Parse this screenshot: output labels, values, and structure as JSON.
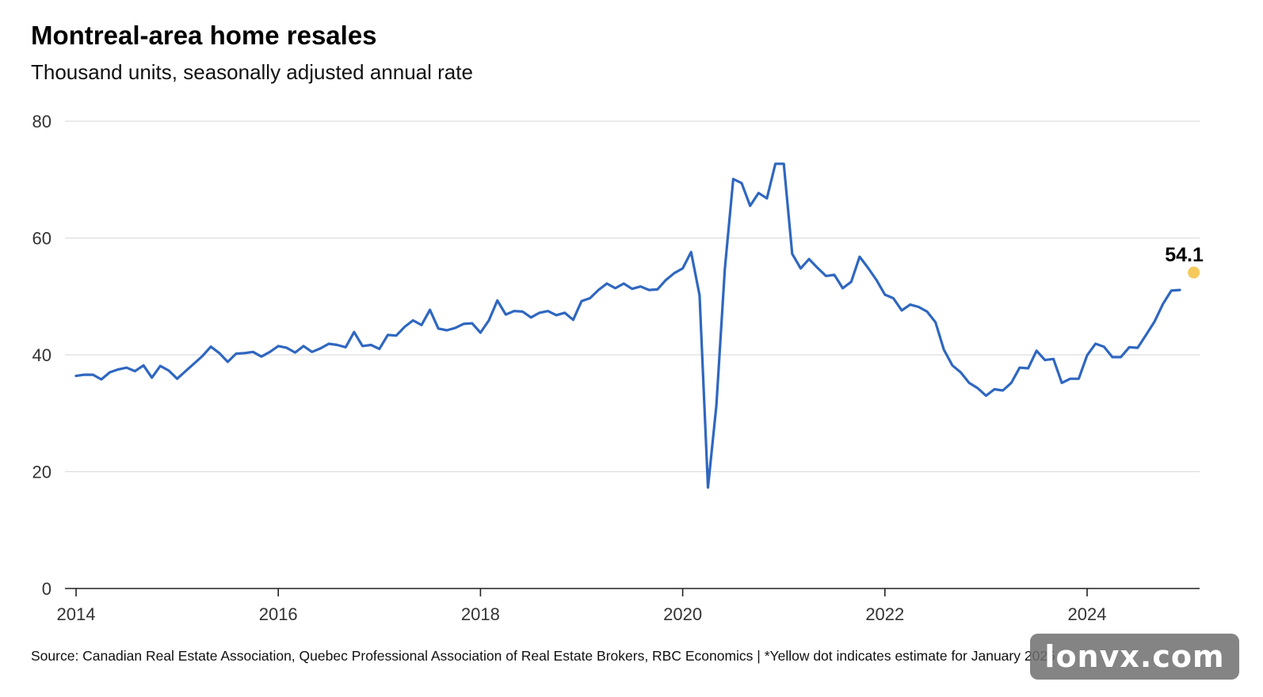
{
  "title": "Montreal-area home resales",
  "subtitle": "Thousand units, seasonally adjusted annual rate",
  "source": "Source: Canadian Real Estate Association, Quebec Professional Association of Real Estate Brokers, RBC Economics | *Yellow dot indicates estimate for January 2025",
  "watermark": "lonvx.com",
  "colors": {
    "line": "#2F67C0",
    "estimate_dot": "#F5C95C",
    "grid": "#DDDDDD",
    "axis": "#222222"
  },
  "chart_data": {
    "type": "line",
    "title": "Montreal-area home resales",
    "subtitle": "Thousand units, seasonally adjusted annual rate",
    "xlabel": "",
    "ylabel": "",
    "ylim": [
      0,
      80
    ],
    "yticks": [
      0,
      20,
      40,
      60,
      80
    ],
    "xlim": [
      2014.0,
      2025.1
    ],
    "xticks": [
      2014,
      2016,
      2018,
      2020,
      2022,
      2024
    ],
    "grid": true,
    "series": [
      {
        "x_start": 2014.0,
        "x_step_months": 1,
        "values": [
          36.4,
          36.6,
          36.6,
          35.8,
          37.0,
          37.5,
          37.8,
          37.2,
          38.2,
          36.1,
          38.1,
          37.3,
          35.9,
          37.2,
          38.5,
          39.8,
          41.4,
          40.3,
          38.8,
          40.2,
          40.3,
          40.5,
          39.7,
          40.5,
          41.5,
          41.2,
          40.4,
          41.5,
          40.5,
          41.1,
          41.9,
          41.7,
          41.3,
          43.9,
          41.5,
          41.7,
          41.0,
          43.4,
          43.3,
          44.8,
          45.9,
          45.1,
          47.7,
          44.5,
          44.2,
          44.6,
          45.3,
          45.4,
          43.8,
          45.9,
          49.3,
          46.9,
          47.5,
          47.4,
          46.4,
          47.2,
          47.5,
          46.8,
          47.2,
          46.0,
          49.2,
          49.7,
          51.1,
          52.2,
          51.4,
          52.2,
          51.3,
          51.7,
          51.1,
          51.2,
          52.8,
          54.0,
          54.8,
          57.6,
          50.2,
          17.3,
          31.3,
          54.7,
          70.1,
          69.4,
          65.5,
          67.7,
          66.8,
          72.7,
          72.7,
          57.3,
          54.8,
          56.4,
          54.9,
          53.5,
          53.7,
          51.4,
          52.5,
          56.8,
          54.9,
          52.8,
          50.3,
          49.7,
          47.6,
          48.6,
          48.2,
          47.4,
          45.6,
          40.9,
          38.2,
          37.0,
          35.2,
          34.3,
          33.0,
          34.1,
          33.9,
          35.2,
          37.8,
          37.7,
          40.7,
          39.1,
          39.3,
          35.2,
          35.9,
          35.9,
          39.9,
          41.9,
          41.4,
          39.6,
          39.6,
          41.3,
          41.2,
          43.4,
          45.7,
          48.7,
          51.0,
          51.1
        ]
      }
    ],
    "estimate": {
      "label": "January 2025",
      "x": 2025.0,
      "value": 54.1,
      "display": "54.1"
    }
  }
}
